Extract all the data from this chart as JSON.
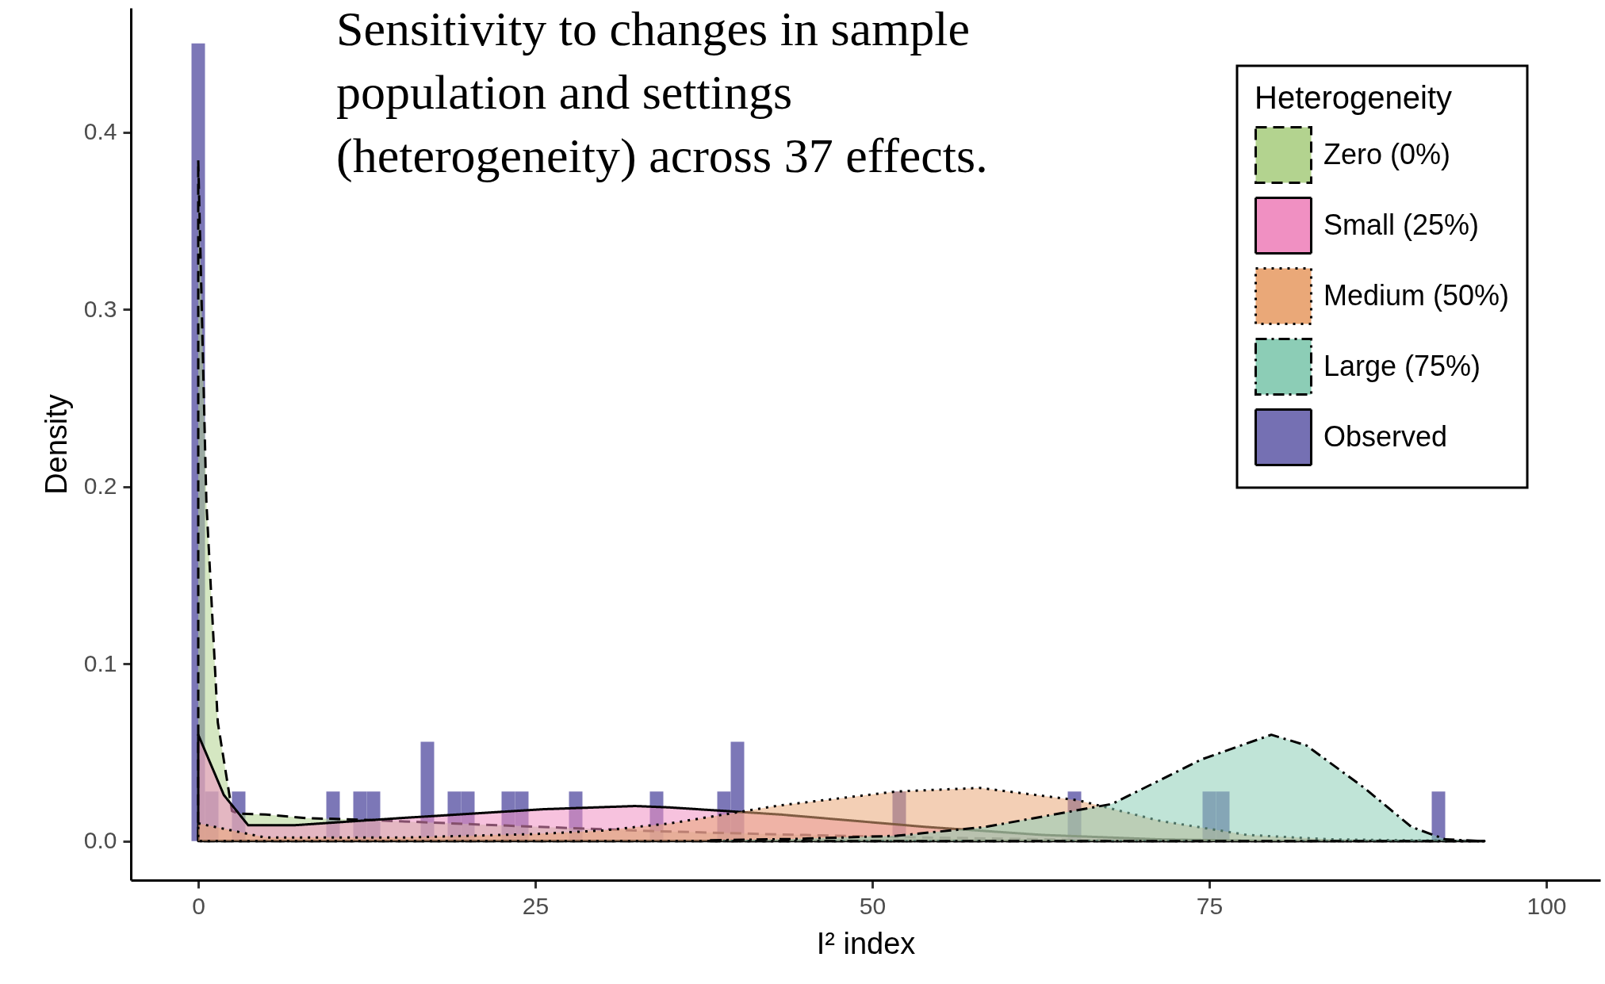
{
  "chart_data": {
    "type": "area",
    "title": "Sensitivity to changes in sample population and settings (heterogeneity) across 37 effects.",
    "xlabel": "I² index",
    "ylabel": "Density",
    "legend_title": "Heterogeneity",
    "xlim": [
      -5,
      104
    ],
    "ylim": [
      -0.022,
      0.47
    ],
    "xticks": [
      0,
      25,
      50,
      75,
      100
    ],
    "yticks": [
      {
        "value": 0,
        "label": "0.0"
      },
      0.1,
      0.2,
      0.3,
      0.4
    ],
    "grid": false,
    "legend": "top right",
    "series": [
      {
        "name": "Zero (0%)",
        "color": "#b3d38f",
        "line_style": "dashed",
        "x": [
          0,
          0.6,
          1.45,
          2.5,
          3,
          5,
          8,
          12.4,
          23,
          33.5,
          42,
          51.8,
          62.7,
          70,
          80,
          95.4
        ],
        "values": [
          0.384,
          0.192,
          0.067,
          0.017,
          0.0155,
          0.015,
          0.013,
          0.012,
          0.0087,
          0.0057,
          0.004,
          0.0023,
          0.001,
          0,
          0,
          0
        ]
      },
      {
        "name": "Small (25%)",
        "color": "#f090c2",
        "line_style": "solid",
        "x": [
          0,
          1.9,
          3.7,
          7.2,
          15,
          25.6,
          32.4,
          35,
          43.2,
          54,
          62.6,
          71.3,
          80,
          95.4
        ],
        "values": [
          0.06,
          0.026,
          0.009,
          0.009,
          0.013,
          0.018,
          0.0198,
          0.019,
          0.015,
          0.008,
          0.0035,
          0.001,
          0,
          0
        ]
      },
      {
        "name": "Medium (50%)",
        "color": "#eaa878",
        "line_style": "dotted",
        "x": [
          0,
          5,
          15,
          25,
          30,
          35,
          43,
          51.8,
          58,
          65.3,
          71.3,
          77.8,
          84,
          95.4
        ],
        "values": [
          0.01,
          0.002,
          0.002,
          0.004,
          0.006,
          0.01,
          0.02,
          0.028,
          0.03,
          0.023,
          0.0115,
          0.0035,
          0.001,
          0
        ]
      },
      {
        "name": "Large (75%)",
        "color": "#8ccdb6",
        "line_style": "dashdot",
        "x": [
          38,
          44,
          51.8,
          58.4,
          67.8,
          74.4,
          79.6,
          82.2,
          86.5,
          90,
          92.5,
          95.4
        ],
        "values": [
          0.0005,
          0.0012,
          0.003,
          0.008,
          0.021,
          0.046,
          0.06,
          0.054,
          0.03,
          0.008,
          0.001,
          0
        ]
      },
      {
        "name": "Observed",
        "type": "histogram",
        "color": "#7570b3",
        "bins": [
          -0.5,
          0.5,
          1.5,
          2.5,
          3.5,
          4.5,
          5.5,
          6.5,
          7.5,
          8.5,
          9.5,
          10.5,
          11.5,
          12.5,
          13.5,
          14.5,
          15.5,
          16.5,
          17.5,
          18.5,
          19.5,
          20.5,
          21.5,
          22.5,
          23.5,
          24.5,
          25.5,
          26.5,
          27.5,
          28.5,
          29.5,
          30.5,
          31.5,
          32.5,
          33.5,
          34.5,
          35.5,
          36.5,
          37.5,
          38.5,
          39.5,
          40.5,
          41.5,
          42.5,
          43.5,
          44.5,
          45.5,
          46.5,
          47.5,
          48.5,
          49.5,
          50.5,
          51.5,
          52.5,
          53.5,
          54.5,
          55.5,
          56.5,
          57.5,
          58.5,
          59.5,
          60.5,
          61.5,
          62.5,
          63.5,
          64.5,
          65.5,
          66.5,
          67.5,
          68.5,
          69.5,
          70.5,
          71.5,
          72.5,
          73.5,
          74.5,
          75.5,
          76.5,
          77.5,
          78.5,
          79.5,
          80.5,
          81.5,
          82.5,
          83.5,
          84.5,
          85.5,
          86.5,
          87.5,
          88.5,
          89.5,
          90.5,
          91.5,
          92.5
        ],
        "values": [
          0.45,
          0.028,
          0,
          0.028,
          0,
          0,
          0,
          0,
          0,
          0,
          0.028,
          0,
          0.028,
          0.028,
          0,
          0,
          0,
          0.056,
          0,
          0.028,
          0.028,
          0,
          0,
          0.028,
          0.028,
          0,
          0,
          0,
          0.028,
          0,
          0,
          0,
          0,
          0,
          0.028,
          0,
          0,
          0,
          0,
          0.028,
          0.056,
          0,
          0,
          0,
          0,
          0,
          0,
          0,
          0,
          0,
          0,
          0,
          0.028,
          0,
          0,
          0,
          0,
          0,
          0,
          0,
          0,
          0,
          0,
          0,
          0,
          0.028,
          0,
          0,
          0,
          0,
          0,
          0,
          0,
          0,
          0,
          0.028,
          0.028,
          0,
          0,
          0,
          0,
          0,
          0,
          0,
          0,
          0,
          0,
          0,
          0,
          0,
          0,
          0,
          0.028
        ]
      }
    ]
  }
}
